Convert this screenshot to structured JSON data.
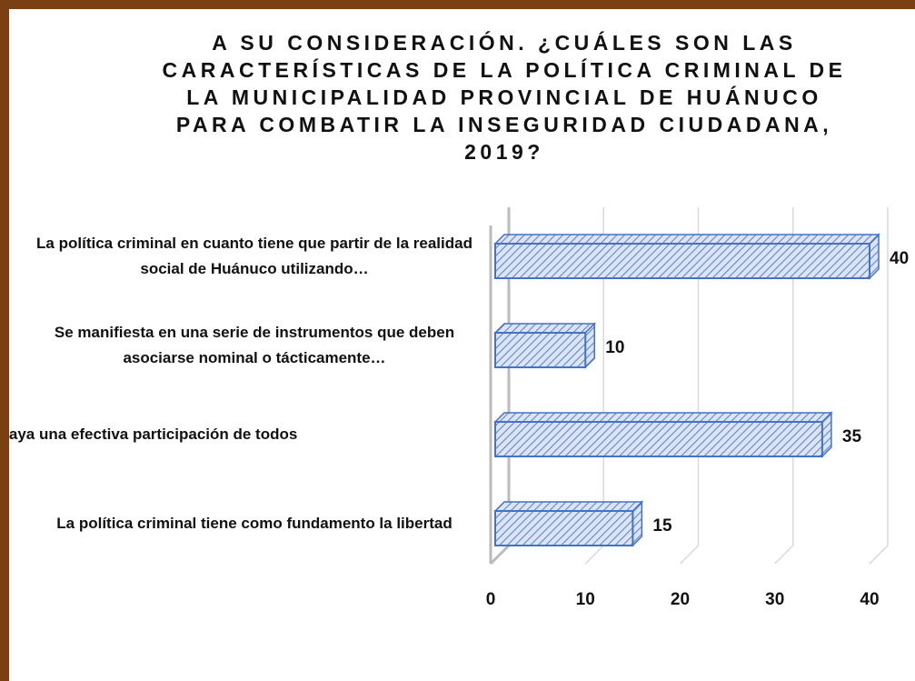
{
  "chart_data": {
    "type": "bar3d_horizontal",
    "title": "A SU CONSIDERACIÓN. ¿CUÁLES SON LAS CARACTERÍSTICAS DE LA POLÍTICA CRIMINAL DE LA MUNICIPALIDAD PROVINCIAL DE HUÁNUCO PARA COMBATIR LA INSEGURIDAD CIUDADANA, 2019?",
    "categories": [
      "La política criminal en cuanto tiene que partir de la realidad social de Huánuco utilizando…",
      "Se manifiesta en una serie de instrumentos que deben asociarse nominal o tácticamente…",
      "ge que haya una efectiva participación de todos",
      "La política criminal tiene como fundamento la libertad"
    ],
    "values": [
      40,
      10,
      35,
      15
    ],
    "color": "#8faadc",
    "edge_color": "#4472c4",
    "xlim": [
      0,
      40
    ],
    "xticks": [
      0,
      10,
      20,
      30,
      40
    ],
    "grid": true
  }
}
